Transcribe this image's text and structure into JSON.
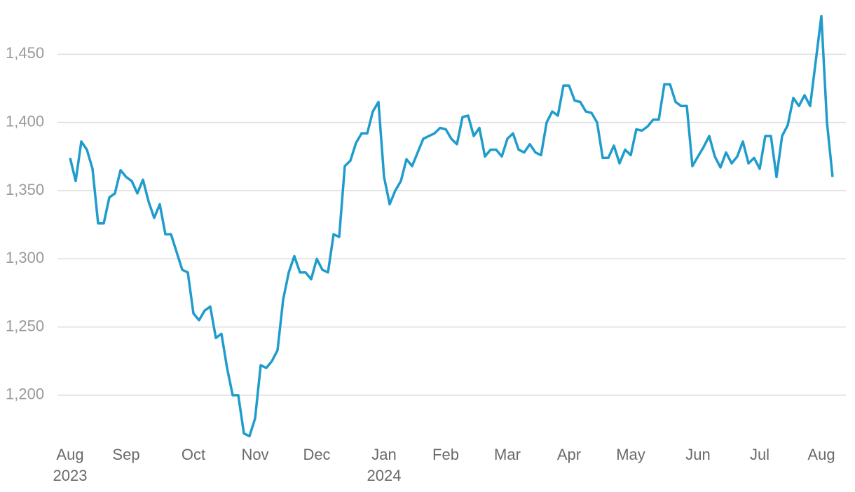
{
  "chart_data": {
    "type": "line",
    "color": "#1f9ccb",
    "grid": true,
    "ylim": [
      1165,
      1480
    ],
    "yticks": [
      {
        "value": 1200,
        "label": "1,200"
      },
      {
        "value": 1250,
        "label": "1,250"
      },
      {
        "value": 1300,
        "label": "1,300"
      },
      {
        "value": 1350,
        "label": "1,350"
      },
      {
        "value": 1400,
        "label": "1,400"
      },
      {
        "value": 1450,
        "label": "1,450"
      }
    ],
    "categories": [
      "Aug 2023",
      null,
      null,
      null,
      null,
      null,
      null,
      null,
      null,
      null,
      "Sep",
      null,
      null,
      null,
      null,
      null,
      null,
      null,
      null,
      null,
      null,
      null,
      "Oct",
      null,
      null,
      null,
      null,
      null,
      null,
      null,
      null,
      null,
      null,
      "Nov",
      null,
      null,
      null,
      null,
      null,
      null,
      null,
      null,
      null,
      null,
      "Dec",
      null,
      null,
      null,
      null,
      null,
      null,
      null,
      null,
      null,
      null,
      null,
      "Jan 2024",
      null,
      null,
      null,
      null,
      null,
      null,
      null,
      null,
      null,
      null,
      "Feb",
      null,
      null,
      null,
      null,
      null,
      null,
      null,
      null,
      null,
      null,
      "Mar",
      null,
      null,
      null,
      null,
      null,
      null,
      null,
      null,
      null,
      null,
      "Apr",
      null,
      null,
      null,
      null,
      null,
      null,
      null,
      null,
      null,
      null,
      "May",
      null,
      null,
      null,
      null,
      null,
      null,
      null,
      null,
      null,
      null,
      null,
      "Jun",
      null,
      null,
      null,
      null,
      null,
      null,
      null,
      null,
      null,
      null,
      "Jul",
      null,
      null,
      null,
      null,
      null,
      null,
      null,
      null,
      null,
      null,
      "Aug",
      null,
      null
    ],
    "values": [
      1374,
      1357,
      1386,
      1380,
      1366,
      1326,
      1326,
      1345,
      1348,
      1365,
      1360,
      1357,
      1348,
      1358,
      1342,
      1330,
      1340,
      1318,
      1318,
      1305,
      1292,
      1290,
      1260,
      1255,
      1262,
      1265,
      1242,
      1245,
      1220,
      1200,
      1200,
      1172,
      1170,
      1183,
      1222,
      1220,
      1225,
      1233,
      1270,
      1290,
      1302,
      1290,
      1290,
      1285,
      1300,
      1292,
      1290,
      1318,
      1316,
      1368,
      1372,
      1385,
      1392,
      1392,
      1408,
      1415,
      1360,
      1340,
      1350,
      1357,
      1373,
      1368,
      1378,
      1388,
      1390,
      1392,
      1396,
      1395,
      1388,
      1384,
      1404,
      1405,
      1390,
      1396,
      1375,
      1380,
      1380,
      1375,
      1388,
      1392,
      1380,
      1378,
      1384,
      1378,
      1376,
      1400,
      1408,
      1405,
      1427,
      1427,
      1416,
      1415,
      1408,
      1407,
      1400,
      1374,
      1374,
      1383,
      1370,
      1380,
      1376,
      1395,
      1394,
      1397,
      1402,
      1402,
      1428,
      1428,
      1415,
      1412,
      1412,
      1368,
      1375,
      1382,
      1390,
      1375,
      1367,
      1378,
      1370,
      1375,
      1386,
      1370,
      1374,
      1366,
      1390,
      1390,
      1360,
      1390,
      1398,
      1418,
      1412,
      1420,
      1412,
      1445,
      1478,
      1400,
      1360
    ]
  }
}
